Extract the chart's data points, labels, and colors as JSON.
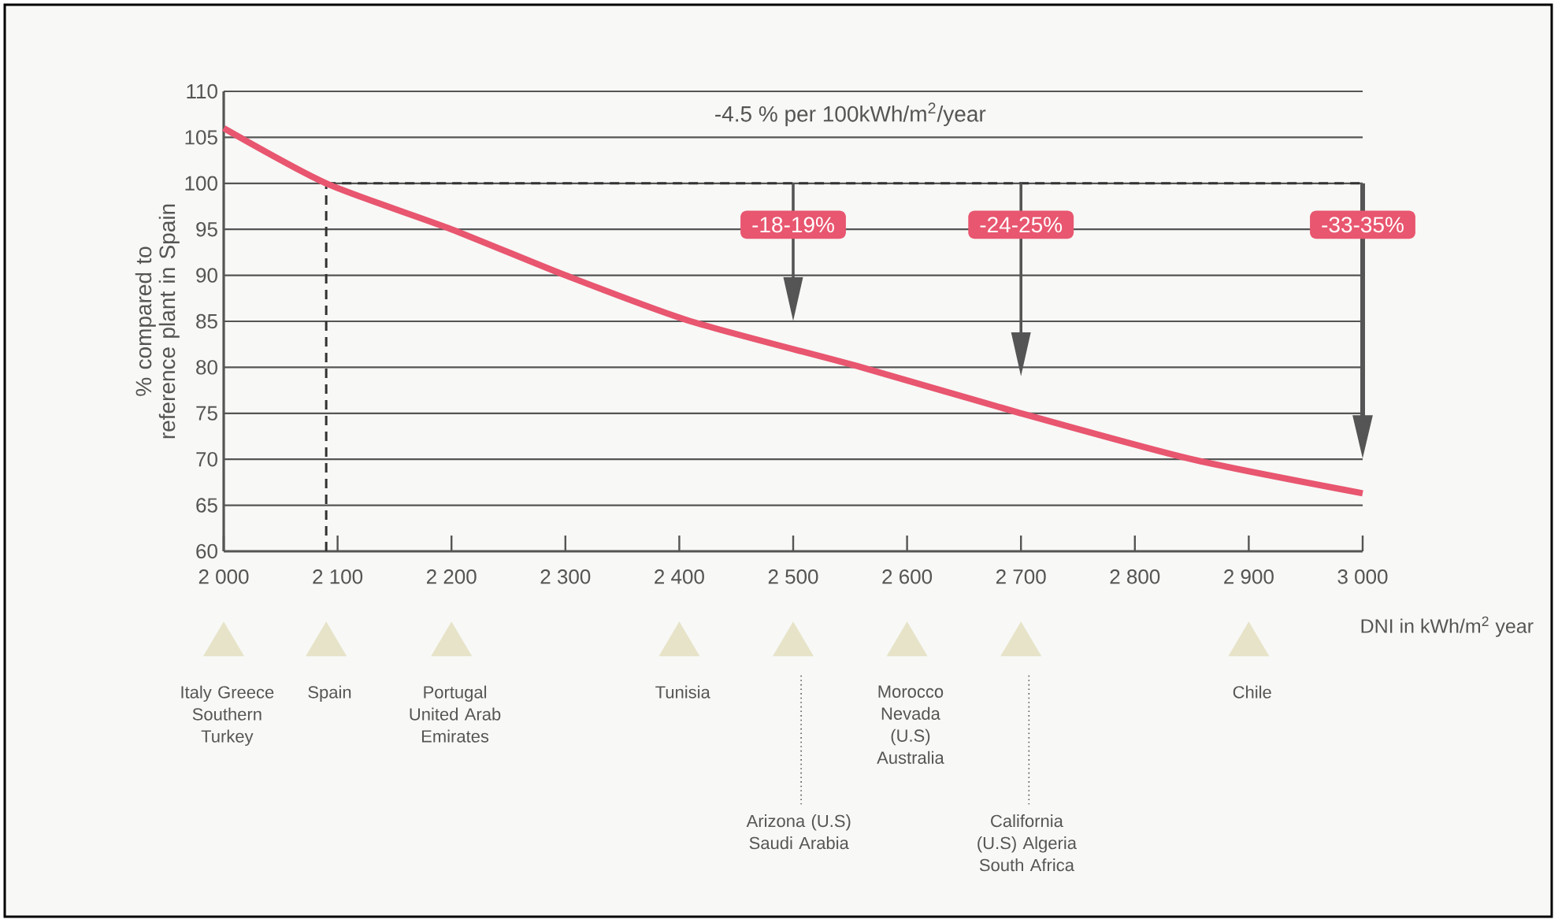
{
  "chart_data": {
    "type": "line",
    "xlabel": "DNI in kWh/m$^{2}$ year",
    "ylabel": "% compared to reference plant in Spain",
    "x": [
      2000,
      2090,
      2200,
      2300,
      2410,
      2560,
      2700,
      2850,
      3000
    ],
    "series": [
      {
        "color": "#e8566f",
        "values": [
          106,
          100,
          95,
          90,
          85,
          80,
          75,
          70,
          66.3
        ]
      }
    ],
    "xlim": [
      2000,
      3000
    ],
    "xticks": [
      {
        "value": 2000,
        "label": "2 000"
      },
      {
        "value": 2100,
        "label": "2 100"
      },
      {
        "value": 2200,
        "label": "2 200"
      },
      {
        "value": 2300,
        "label": "2 300"
      },
      {
        "value": 2400,
        "label": "2 400"
      },
      {
        "value": 2500,
        "label": "2 500"
      },
      {
        "value": 2600,
        "label": "2 600"
      },
      {
        "value": 2700,
        "label": "2 700"
      },
      {
        "value": 2800,
        "label": "2 800"
      },
      {
        "value": 2900,
        "label": "2 900"
      },
      {
        "value": 3000,
        "label": "3 000"
      }
    ],
    "ylim": [
      60,
      110
    ],
    "yticks": [
      60,
      65,
      70,
      75,
      80,
      85,
      90,
      95,
      100,
      105,
      110
    ],
    "grid": "y",
    "marker": "none",
    "line_style": "solid",
    "ref_lines": [
      {
        "axis": "x",
        "value": 2090,
        "line_style": "dashed",
        "color": "#333333"
      },
      {
        "axis": "y",
        "value": 100,
        "line_style": "dashed",
        "color": "#333333"
      }
    ],
    "annotations": [
      "-4.5 % per 100kWh/m$^{2}$/year",
      "-18-19%",
      "-24-25%",
      "-33-35%",
      "Italy Greece Southern Turkey",
      "Spain",
      "Portugal United Arab Emirates",
      "Tunisia",
      "Morocco Nevada (U.S) Australia",
      "Chile",
      "Arizona (U.S) Saudi Arabia",
      "California (U.S) Algeria South Africa"
    ]
  }
}
